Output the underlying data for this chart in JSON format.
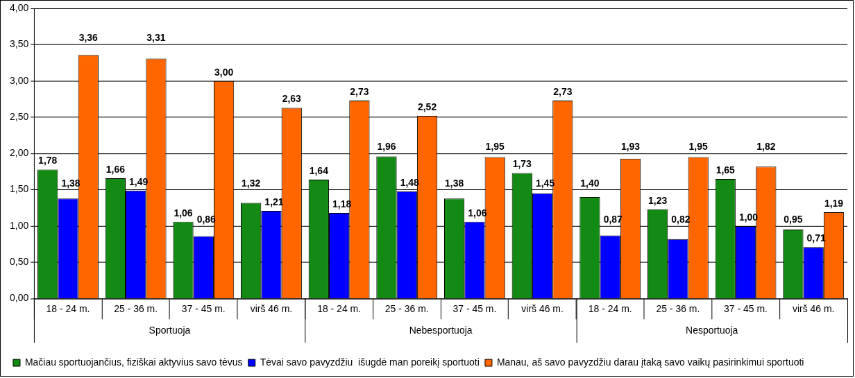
{
  "chart_data": {
    "type": "bar",
    "categories": [
      "18 - 24 m.",
      "25 - 36 m.",
      "37 - 45 m.",
      "virš 46 m.",
      "18 - 24 m.",
      "25 - 36 m.",
      "37 - 45 m.",
      "virš 46 m.",
      "18 - 24 m.",
      "25 - 36 m.",
      "37 - 45 m.",
      "virš 46 m."
    ],
    "series": [
      {
        "name": "Mačiau sportuojančius, fiziškai aktyvius savo tėvus",
        "color": "#138a13",
        "values": [
          1.78,
          1.66,
          1.06,
          1.32,
          1.64,
          1.96,
          1.38,
          1.73,
          1.4,
          1.23,
          1.65,
          0.95
        ],
        "value_labels": [
          "1,78",
          "1,66",
          "1,06",
          "1,32",
          "1,64",
          "1,96",
          "1,38",
          "1,73",
          "1,40",
          "1,23",
          "1,65",
          "0,95"
        ]
      },
      {
        "name": "Tėvai savo pavyzdžiu  išugdė man poreikį sportuoti",
        "color": "#0000ff",
        "values": [
          1.38,
          1.49,
          0.86,
          1.21,
          1.18,
          1.48,
          1.06,
          1.45,
          0.87,
          0.82,
          1.0,
          0.71
        ],
        "value_labels": [
          "1,38",
          "1,49",
          "0,86",
          "1,21",
          "1,18",
          "1,48",
          "1,06",
          "1,45",
          "0,87",
          "0,82",
          "1,00",
          "0,71"
        ]
      },
      {
        "name": "Manau, aš savo pavyzdžiu darau įtaką savo vaikų pasirinkimui sportuoti",
        "color": "#ff6600",
        "values": [
          3.36,
          3.31,
          3.0,
          2.63,
          2.73,
          2.52,
          1.95,
          2.73,
          1.93,
          1.95,
          1.82,
          1.19
        ],
        "value_labels": [
          "3,36",
          "3,31",
          "3,00",
          "2,63",
          "2,73",
          "2,52",
          "1,95",
          "2,73",
          "1,93",
          "1,95",
          "1,82",
          "1,19"
        ]
      }
    ],
    "ylim": [
      0,
      4
    ],
    "yticks": [
      {
        "value": 0,
        "label": "0,00"
      },
      {
        "value": 0.5,
        "label": "0,50"
      },
      {
        "value": 1,
        "label": "1,00"
      },
      {
        "value": 1.5,
        "label": "1,50"
      },
      {
        "value": 2,
        "label": "2,00"
      },
      {
        "value": 2.5,
        "label": "2,50"
      },
      {
        "value": 3,
        "label": "3,00"
      },
      {
        "value": 3.5,
        "label": "3,50"
      },
      {
        "value": 4,
        "label": "4,00"
      }
    ],
    "annotations": [
      "Sportuoja",
      "Nebesportuoja",
      "Nesportuoja"
    ],
    "grid": "y",
    "legend": "bottom"
  }
}
